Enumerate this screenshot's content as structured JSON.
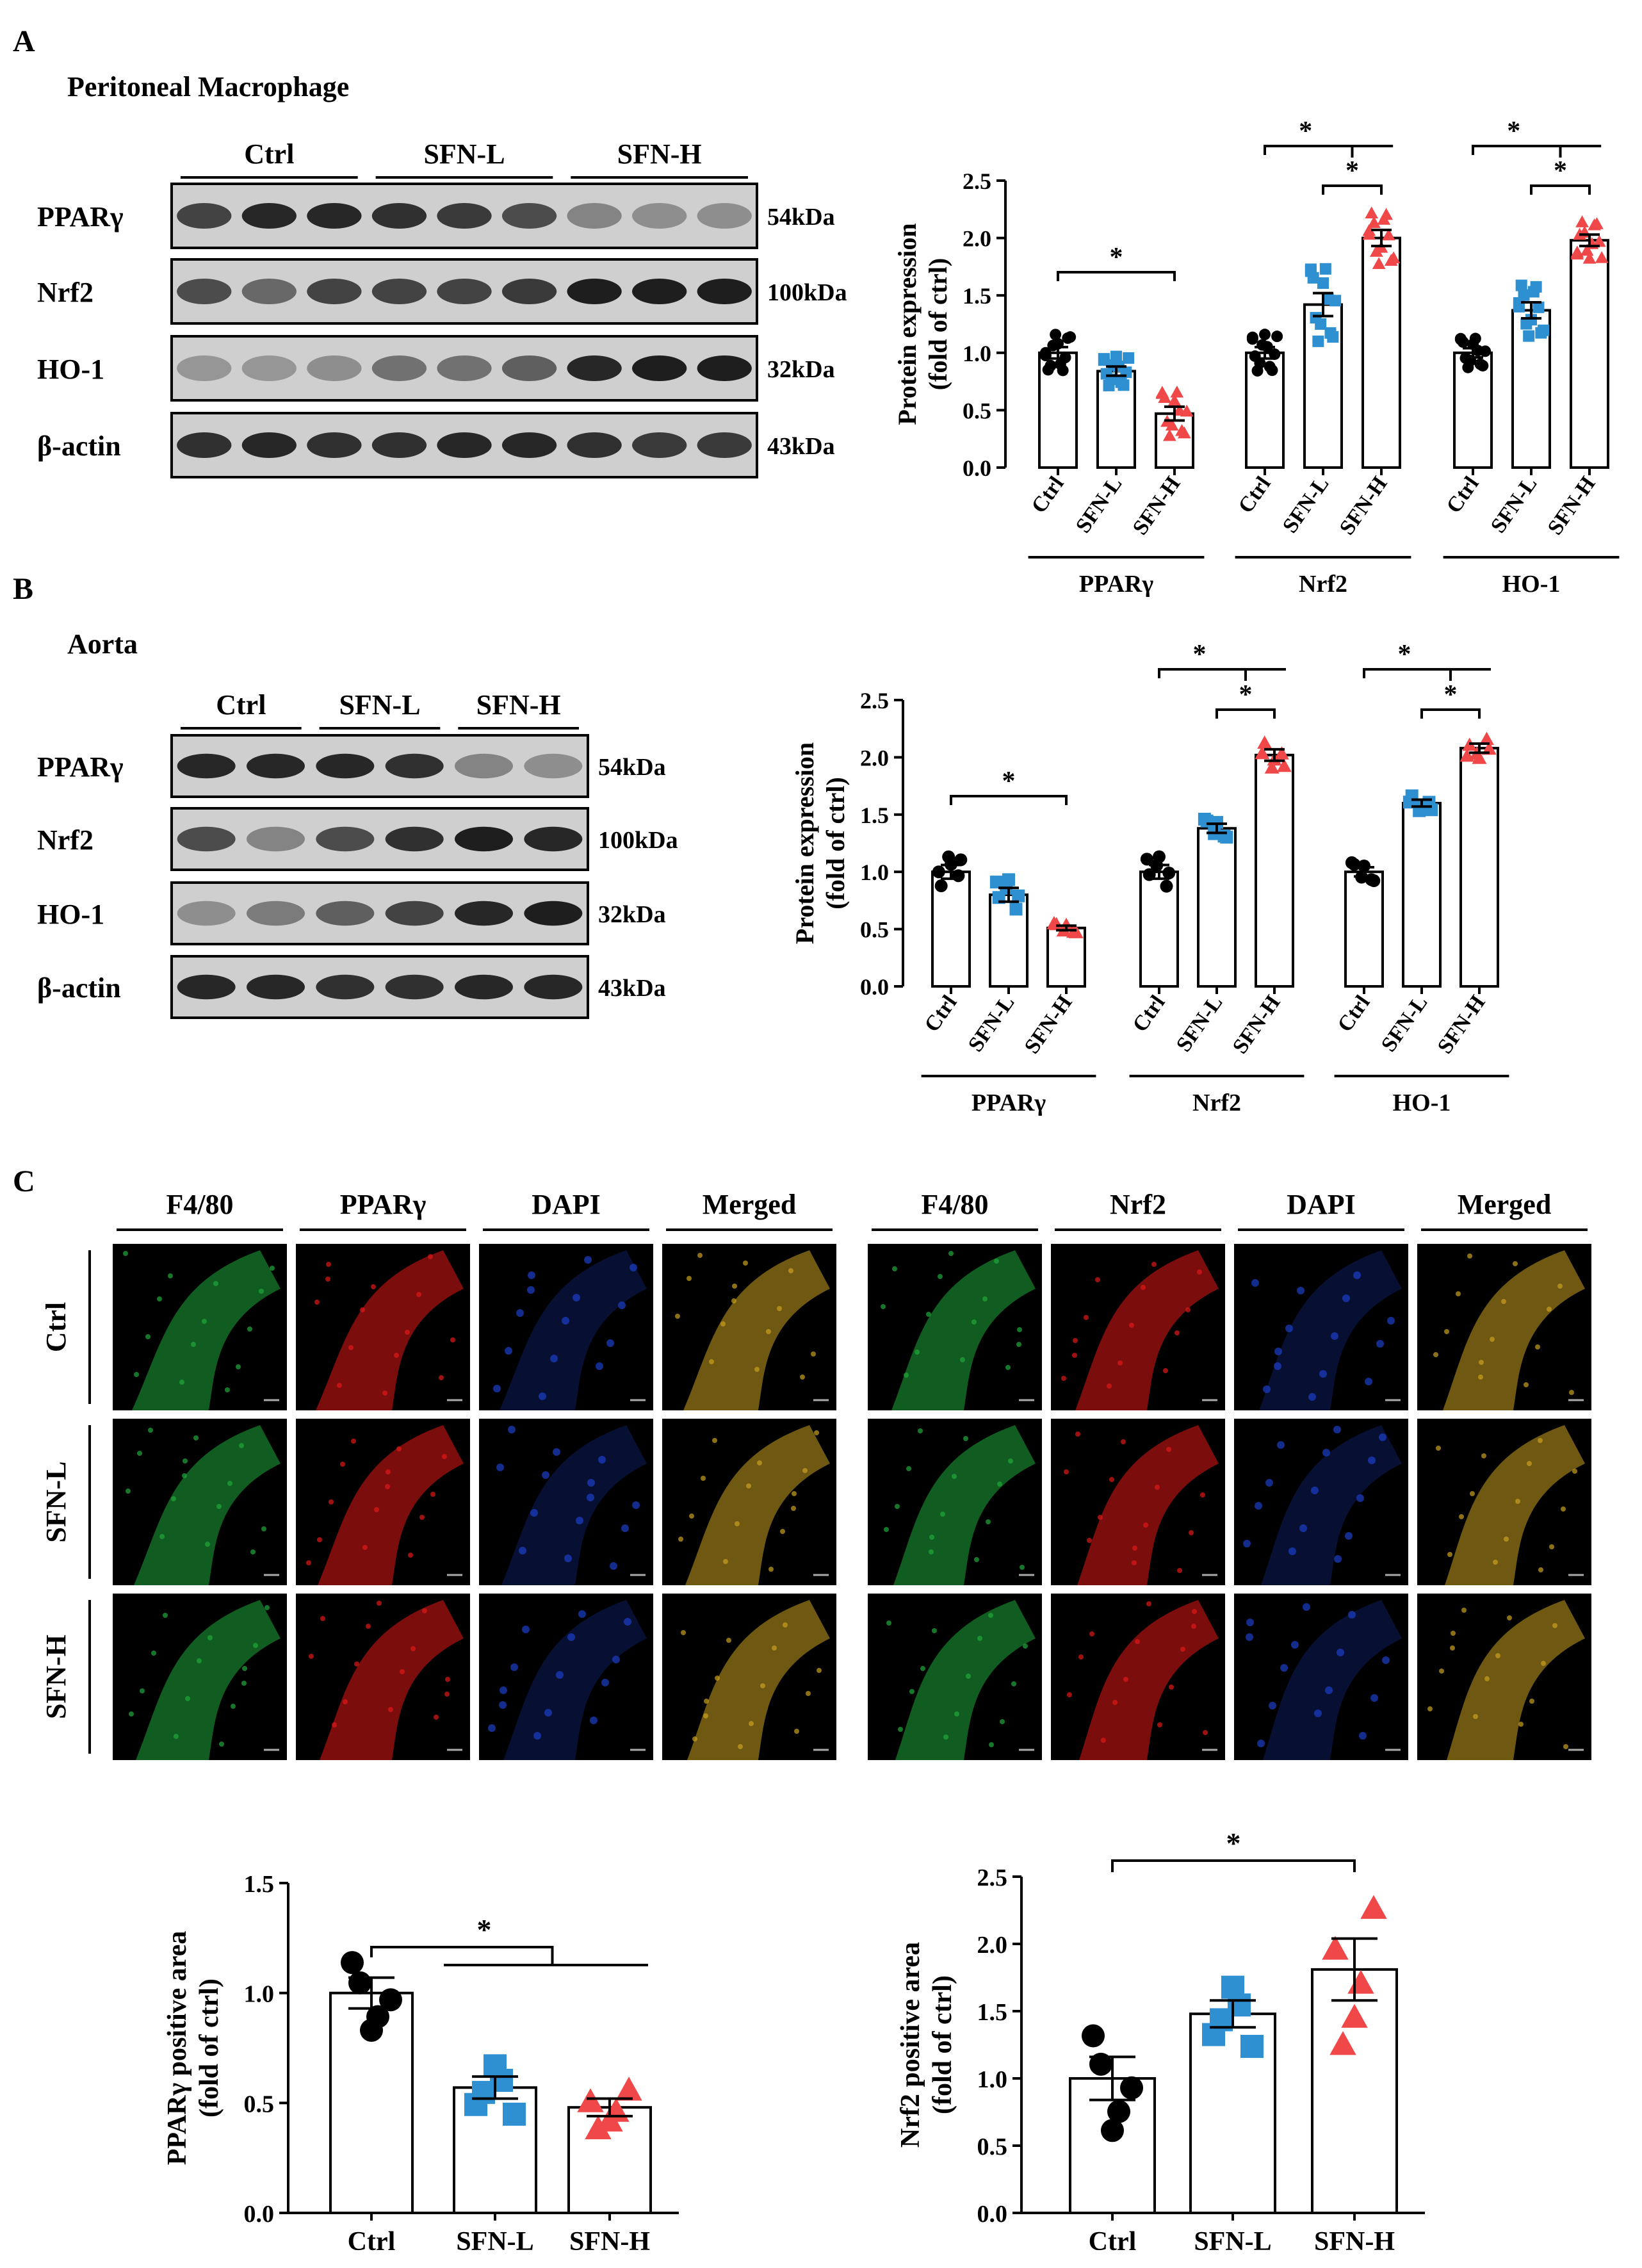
{
  "panelA": {
    "letter": "A",
    "title": "Peritoneal Macrophage",
    "groups": [
      "Ctrl",
      "SFN-L",
      "SFN-H"
    ],
    "proteins": [
      "PPARγ",
      "Nrf2",
      "HO-1",
      "β-actin"
    ],
    "sizes": [
      "54kDa",
      "100kDa",
      "32kDa",
      "43kDa"
    ]
  },
  "panelB": {
    "letter": "B",
    "title": "Aorta",
    "groups": [
      "Ctrl",
      "SFN-L",
      "SFN-H"
    ],
    "proteins": [
      "PPARγ",
      "Nrf2",
      "HO-1",
      "β-actin"
    ],
    "sizes": [
      "54kDa",
      "100kDa",
      "32kDa",
      "43kDa"
    ]
  },
  "panelC": {
    "letter": "C",
    "left_columns": [
      "F4/80",
      "PPARγ",
      "DAPI",
      "Merged"
    ],
    "right_columns": [
      "F4/80",
      "Nrf2",
      "DAPI",
      "Merged"
    ],
    "rows": [
      "Ctrl",
      "SFN-L",
      "SFN-H"
    ],
    "channel_colors": {
      "green": "#1fa83a",
      "red": "#e01818",
      "blue": "#1c3fc8",
      "merged": "#c8a020"
    }
  },
  "colors": {
    "ctrl": "#000000",
    "sfn_l": "#2e8fd1",
    "sfn_h": "#f04848"
  },
  "chart_data": [
    {
      "id": "A-quant",
      "type": "bar",
      "ylabel": [
        "Protein expression",
        "(fold of ctrl)"
      ],
      "ylim": [
        0,
        2.5
      ],
      "yticks": [
        "0.0",
        "0.5",
        "1.0",
        "1.5",
        "2.0",
        "2.5"
      ],
      "categories": [
        "Ctrl",
        "SFN-L",
        "SFN-H"
      ],
      "groups": [
        {
          "name": "PPARγ",
          "values": [
            1.0,
            0.84,
            0.47
          ],
          "sem": [
            0.05,
            0.04,
            0.06
          ]
        },
        {
          "name": "Nrf2",
          "values": [
            1.0,
            1.42,
            2.0
          ],
          "sem": [
            0.05,
            0.1,
            0.07
          ]
        },
        {
          "name": "HO-1",
          "values": [
            1.0,
            1.37,
            1.98
          ],
          "sem": [
            0.04,
            0.07,
            0.05
          ]
        }
      ],
      "significance": "*"
    },
    {
      "id": "B-quant",
      "type": "bar",
      "ylabel": [
        "Protein expression",
        "(fold of ctrl)"
      ],
      "ylim": [
        0,
        2.5
      ],
      "yticks": [
        "0.0",
        "0.5",
        "1.0",
        "1.5",
        "2.0",
        "2.5"
      ],
      "categories": [
        "Ctrl",
        "SFN-L",
        "SFN-H"
      ],
      "groups": [
        {
          "name": "PPARγ",
          "values": [
            1.0,
            0.8,
            0.51
          ],
          "sem": [
            0.06,
            0.06,
            0.02
          ]
        },
        {
          "name": "Nrf2",
          "values": [
            1.0,
            1.38,
            2.02
          ],
          "sem": [
            0.06,
            0.04,
            0.05
          ]
        },
        {
          "name": "HO-1",
          "values": [
            1.0,
            1.6,
            2.08
          ],
          "sem": [
            0.04,
            0.03,
            0.04
          ]
        }
      ],
      "significance": "*"
    },
    {
      "id": "C-pparg",
      "type": "bar",
      "ylabel": [
        "PPARγ positive area",
        "(fold of ctrl)"
      ],
      "ylim": [
        0,
        1.5
      ],
      "yticks": [
        "0.0",
        "0.5",
        "1.0",
        "1.5"
      ],
      "categories": [
        "Ctrl",
        "SFN-L",
        "SFN-H"
      ],
      "values": [
        1.0,
        0.57,
        0.48
      ],
      "sem": [
        0.07,
        0.05,
        0.04
      ],
      "significance": "*"
    },
    {
      "id": "C-nrf2",
      "type": "bar",
      "ylabel": [
        "Nrf2 positive area",
        "(fold of ctrl)"
      ],
      "ylim": [
        0,
        2.5
      ],
      "yticks": [
        "0.0",
        "0.5",
        "1.0",
        "1.5",
        "2.0",
        "2.5"
      ],
      "categories": [
        "Ctrl",
        "SFN-L",
        "SFN-H"
      ],
      "values": [
        1.0,
        1.48,
        1.81
      ],
      "sem": [
        0.16,
        0.1,
        0.23
      ],
      "significance": "*"
    }
  ]
}
